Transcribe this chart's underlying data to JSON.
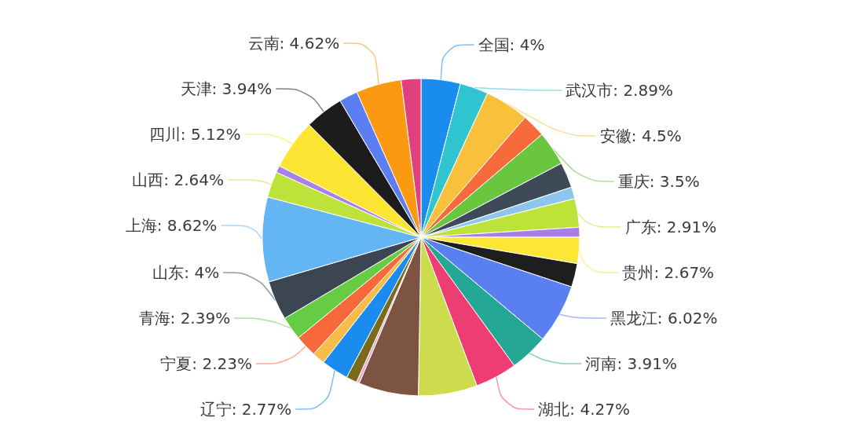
{
  "chart_data": {
    "type": "pie",
    "categories": [
      "全国",
      "武汉市",
      "安徽",
      null,
      "重庆",
      null,
      null,
      "广东",
      null,
      "贵州",
      null,
      "黑龙江",
      "河南",
      "湖北",
      null,
      null,
      null,
      null,
      "辽宁",
      null,
      "宁夏",
      "青海",
      "山东",
      "上海",
      "山西",
      null,
      "四川",
      "天津",
      null,
      "云南",
      null
    ],
    "values": [
      4,
      2.89,
      4.5,
      2.4,
      3.5,
      2.6,
      1.2,
      2.91,
      1.0,
      2.67,
      2.4,
      6.02,
      3.91,
      4.27,
      6.0,
      6.1,
      0.3,
      1.1,
      2.77,
      1.3,
      2.23,
      2.39,
      4,
      8.62,
      2.64,
      0.7,
      5.12,
      3.94,
      1.9,
      4.62,
      2.0
    ],
    "value_labels": [
      "4%",
      "2.89%",
      "4.5%",
      null,
      "3.5%",
      null,
      null,
      "2.91%",
      null,
      "2.67%",
      null,
      "6.02%",
      "3.91%",
      "4.27%",
      null,
      null,
      null,
      null,
      "2.77%",
      null,
      "2.23%",
      "2.39%",
      "4%",
      "8.62%",
      "2.64%",
      null,
      "5.12%",
      "3.94%",
      null,
      "4.62%",
      null
    ],
    "colors": [
      "#1a8cf0",
      "#2fc4cf",
      "#f9c13b",
      "#f76b3a",
      "#6ac53f",
      "#3e4a57",
      "#8ec5ef",
      "#bde33a",
      "#a77ee6",
      "#fde636",
      "#1e1e1e",
      "#5a7ff0",
      "#24a895",
      "#ee3d72",
      "#cddc4d",
      "#7c5441",
      "#f4a6c8",
      "#7a6b1a",
      "#1a8cf0",
      "#f9bc4a",
      "#f7693b",
      "#66cc44",
      "#3b4652",
      "#63b5f4",
      "#bde33a",
      "#a97fe8",
      "#fde533",
      "#1c1c1c",
      "#5b7ef2",
      "#fb9a10",
      "#e0407d"
    ]
  }
}
